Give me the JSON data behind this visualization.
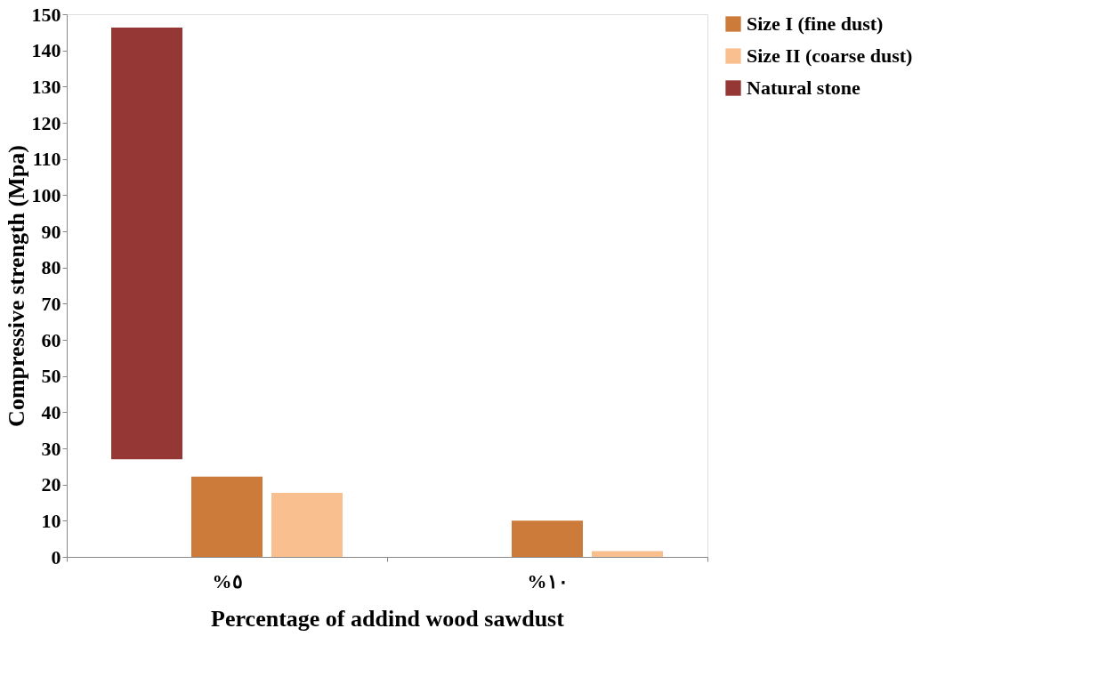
{
  "chart_data": {
    "type": "bar",
    "xlabel": "Percentage of addind wood sawdust",
    "ylabel": "Compressive strength (Mpa)",
    "categories": [
      "%٥",
      "%١٠"
    ],
    "series": [
      {
        "name": "Size I (fine dust)",
        "color": "#cd7b3a",
        "values": [
          22.2,
          10
        ]
      },
      {
        "name": "Size II (coarse dust)",
        "color": "#f9bf8f",
        "values": [
          17.7,
          1.6
        ]
      },
      {
        "name": "Natural stone",
        "color": "#953735",
        "values": [
          119.3,
          null
        ],
        "base": [
          27,
          null
        ]
      }
    ],
    "ylim": [
      0,
      150
    ],
    "yticks": [
      0,
      10,
      20,
      30,
      40,
      50,
      60,
      70,
      80,
      90,
      100,
      110,
      120,
      130,
      140,
      150
    ],
    "grid": false,
    "legend": "right"
  }
}
